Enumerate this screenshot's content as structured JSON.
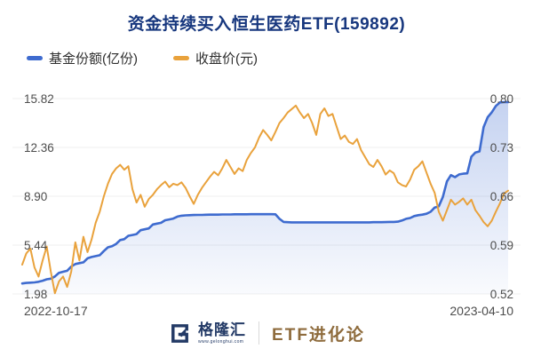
{
  "chart_data": {
    "type": "line",
    "title": "资金持续买入恒生医药ETF(159892)",
    "x_start_label": "2022-10-17",
    "x_end_label": "2023-04-10",
    "grid": true,
    "legend_position": "top-left",
    "left_axis": {
      "label": "基金份额(亿份)",
      "min": 1.98,
      "max": 15.82,
      "ticks": [
        "15.82",
        "12.36",
        "8.90",
        "5.44",
        "1.98"
      ]
    },
    "right_axis": {
      "label": "收盘价(元)",
      "min": 0.52,
      "max": 0.8,
      "ticks": [
        "0.80",
        "0.73",
        "0.66",
        "0.59",
        "0.52"
      ]
    },
    "series": [
      {
        "name": "基金份额(亿份)",
        "axis": "left",
        "color": "#3E6BCF",
        "area_fill": true,
        "values": [
          2.72,
          2.76,
          2.78,
          2.8,
          2.84,
          2.92,
          3.02,
          3.06,
          3.22,
          3.48,
          3.55,
          3.62,
          3.92,
          4.1,
          4.16,
          4.22,
          4.5,
          4.6,
          4.66,
          4.72,
          5.02,
          5.28,
          5.36,
          5.52,
          5.8,
          5.86,
          6.1,
          6.16,
          6.22,
          6.5,
          6.56,
          6.62,
          6.9,
          6.96,
          7.02,
          7.2,
          7.26,
          7.32,
          7.46,
          7.52,
          7.55,
          7.56,
          7.57,
          7.58,
          7.58,
          7.59,
          7.6,
          7.6,
          7.6,
          7.61,
          7.61,
          7.61,
          7.62,
          7.62,
          7.62,
          7.62,
          7.63,
          7.63,
          7.63,
          7.63,
          7.63,
          7.63,
          7.62,
          7.3,
          7.08,
          7.06,
          7.05,
          7.05,
          7.05,
          7.05,
          7.05,
          7.05,
          7.05,
          7.05,
          7.05,
          7.05,
          7.05,
          7.05,
          7.05,
          7.05,
          7.05,
          7.05,
          7.05,
          7.05,
          7.05,
          7.05,
          7.06,
          7.06,
          7.06,
          7.07,
          7.08,
          7.08,
          7.1,
          7.18,
          7.3,
          7.36,
          7.5,
          7.56,
          7.6,
          7.66,
          7.8,
          8.1,
          8.18,
          8.85,
          9.95,
          10.4,
          10.25,
          10.45,
          10.5,
          10.52,
          11.7,
          12.0,
          12.08,
          13.8,
          14.5,
          14.85,
          15.3,
          15.55,
          15.57,
          15.57
        ]
      },
      {
        "name": "收盘价(元)",
        "axis": "right",
        "color": "#E9A23C",
        "area_fill": false,
        "values": [
          0.562,
          0.578,
          0.585,
          0.558,
          0.545,
          0.568,
          0.588,
          0.552,
          0.521,
          0.538,
          0.545,
          0.53,
          0.552,
          0.594,
          0.568,
          0.602,
          0.58,
          0.598,
          0.622,
          0.638,
          0.66,
          0.678,
          0.692,
          0.7,
          0.705,
          0.698,
          0.703,
          0.67,
          0.651,
          0.662,
          0.645,
          0.656,
          0.662,
          0.67,
          0.676,
          0.681,
          0.673,
          0.678,
          0.676,
          0.68,
          0.672,
          0.66,
          0.649,
          0.662,
          0.672,
          0.68,
          0.688,
          0.695,
          0.69,
          0.7,
          0.712,
          0.702,
          0.692,
          0.7,
          0.696,
          0.712,
          0.722,
          0.73,
          0.744,
          0.755,
          0.748,
          0.74,
          0.752,
          0.765,
          0.772,
          0.78,
          0.785,
          0.79,
          0.78,
          0.772,
          0.778,
          0.765,
          0.748,
          0.778,
          0.786,
          0.775,
          0.778,
          0.76,
          0.742,
          0.747,
          0.738,
          0.735,
          0.742,
          0.726,
          0.716,
          0.706,
          0.702,
          0.712,
          0.703,
          0.691,
          0.697,
          0.693,
          0.68,
          0.676,
          0.674,
          0.684,
          0.698,
          0.703,
          0.71,
          0.694,
          0.678,
          0.665,
          0.638,
          0.625,
          0.64,
          0.655,
          0.648,
          0.652,
          0.657,
          0.648,
          0.655,
          0.64,
          0.632,
          0.623,
          0.617,
          0.625,
          0.638,
          0.65,
          0.664,
          0.668
        ]
      }
    ]
  },
  "footer": {
    "brand_name": "格隆汇",
    "brand_url": "www.gelonghui.com",
    "series_title": "ETF进化论"
  },
  "colors": {
    "title": "#17377e",
    "fund_line": "#3E6BCF",
    "price_line": "#E9A23C",
    "grid_line": "#efefef",
    "tick_text": "#4d4d4d",
    "brand_navy": "#233a66",
    "brand_bronze": "#8e6b3c"
  }
}
